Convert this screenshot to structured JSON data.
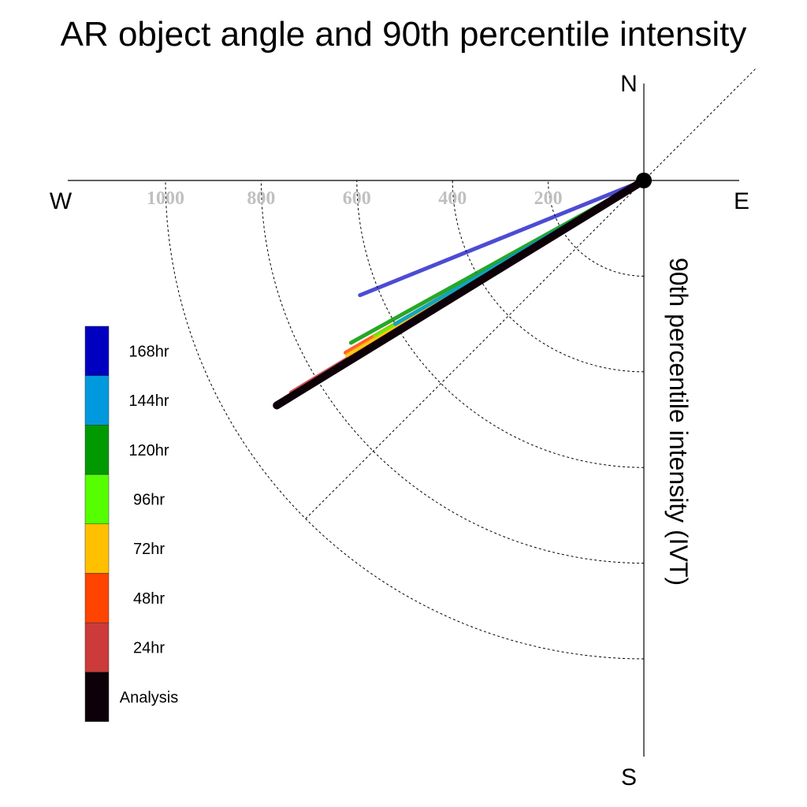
{
  "chart_data": {
    "type": "polar-line",
    "title": "AR object angle and 90th percentile intensity",
    "compass": {
      "north": "N",
      "south": "S",
      "east": "E",
      "west": "W"
    },
    "radial_axis_label": "90th percentile intensity (IVT)",
    "radial_ticks": [
      "200",
      "400",
      "600",
      "800",
      "1000"
    ],
    "radial_tick_values": [
      200,
      400,
      600,
      800,
      1000
    ],
    "rmax": 1200,
    "angle_unit": "degrees clockwise from east (toward south)",
    "grid": true,
    "legend_position": "left",
    "series": [
      {
        "name": "168hr",
        "color": "#0000c0",
        "angle": 22,
        "value": 640
      },
      {
        "name": "144hr",
        "color": "#0099dd",
        "angle": 30,
        "value": 600
      },
      {
        "name": "120hr",
        "color": "#009900",
        "angle": 29,
        "value": 700
      },
      {
        "name": "96hr",
        "color": "#55ff00",
        "angle": 30,
        "value": 650
      },
      {
        "name": "72hr",
        "color": "#ffc000",
        "angle": 30.5,
        "value": 720
      },
      {
        "name": "48hr",
        "color": "#ff4400",
        "angle": 30,
        "value": 720
      },
      {
        "name": "24hr",
        "color": "#cc3a3a",
        "angle": 31,
        "value": 860
      },
      {
        "name": "Analysis",
        "color": "#0d0008",
        "angle": 31.5,
        "value": 900
      }
    ]
  }
}
